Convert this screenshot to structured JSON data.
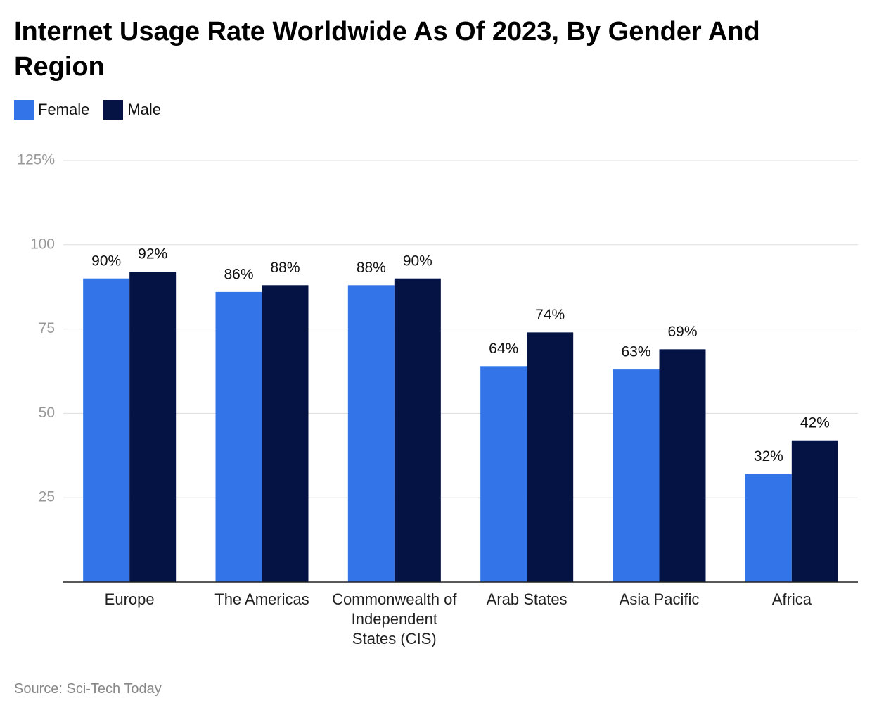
{
  "chart_data": {
    "type": "bar",
    "title": "Internet Usage Rate Worldwide As Of 2023, By Gender And Region",
    "categories": [
      "Europe",
      "The Americas",
      "Commonwealth of Independent States (CIS)",
      "Arab States",
      "Asia Pacific",
      "Africa"
    ],
    "series": [
      {
        "name": "Female",
        "color": "#3375e9",
        "values": [
          90,
          86,
          88,
          64,
          63,
          32
        ],
        "value_labels": [
          "90%",
          "86%",
          "88%",
          "64%",
          "63%",
          "32%"
        ]
      },
      {
        "name": "Male",
        "color": "#041244",
        "values": [
          92,
          88,
          90,
          74,
          69,
          42
        ],
        "value_labels": [
          "92%",
          "88%",
          "90%",
          "74%",
          "69%",
          "42%"
        ]
      }
    ],
    "ylim": [
      0,
      125
    ],
    "yticks": [
      25,
      50,
      75,
      100,
      {
        "value": 125,
        "label": "125%"
      }
    ],
    "grid": true,
    "legend": "top-left",
    "source": "Source: Sci-Tech Today"
  }
}
